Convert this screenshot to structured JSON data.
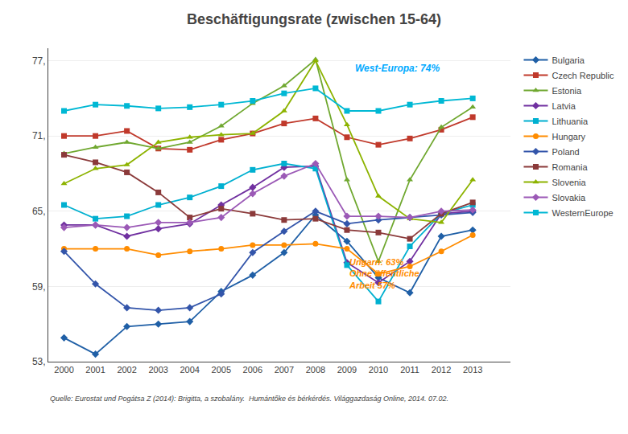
{
  "chart_data": {
    "type": "line",
    "title": "Beschäftigungsrate (zwischen 15-64)",
    "x": [
      2000,
      2001,
      2002,
      2003,
      2004,
      2005,
      2006,
      2007,
      2008,
      2009,
      2010,
      2011,
      2012,
      2013
    ],
    "xlim": [
      1999.5,
      2014.2
    ],
    "xticks": [
      2000,
      2001,
      2002,
      2003,
      2004,
      2005,
      2006,
      2007,
      2008,
      2009,
      2010,
      2011,
      2012,
      2013
    ],
    "ylim": [
      53,
      78
    ],
    "yticks": [
      {
        "value": 53,
        "label": "53,"
      },
      {
        "value": 59,
        "label": "59,"
      },
      {
        "value": 65,
        "label": "65,"
      },
      {
        "value": 71,
        "label": "71,"
      },
      {
        "value": 77,
        "label": "77,"
      }
    ],
    "grid": true,
    "legend": "right",
    "series": [
      {
        "name": "Bulgaria",
        "color": "#1f5fa6",
        "marker": "diamond",
        "values": [
          54.9,
          53.6,
          55.8,
          56.0,
          56.2,
          58.6,
          59.9,
          61.7,
          64.7,
          62.6,
          59.7,
          58.5,
          63.0,
          63.5
        ]
      },
      {
        "name": "Czech Republic",
        "color": "#c0392b",
        "marker": "square",
        "values": [
          71.0,
          71.0,
          71.4,
          70.0,
          69.9,
          70.7,
          71.2,
          72.0,
          72.4,
          70.9,
          70.3,
          70.8,
          71.5,
          72.5
        ]
      },
      {
        "name": "Estonia",
        "color": "#70a830",
        "marker": "triangle-up",
        "values": [
          69.6,
          70.1,
          70.5,
          70.0,
          70.5,
          71.8,
          73.6,
          75.0,
          77.1,
          67.5,
          61.0,
          67.5,
          71.7,
          73.3
        ]
      },
      {
        "name": "Latvia",
        "color": "#7030a0",
        "marker": "diamond",
        "values": [
          63.9,
          63.9,
          63.0,
          63.6,
          64.0,
          65.5,
          66.9,
          68.5,
          68.6,
          60.9,
          59.3,
          61.0,
          64.8,
          65.0
        ]
      },
      {
        "name": "Lithuania",
        "color": "#00b0d0",
        "marker": "square",
        "values": [
          65.5,
          64.4,
          64.6,
          65.5,
          66.1,
          67.0,
          68.3,
          68.8,
          68.4,
          60.7,
          57.8,
          62.2,
          64.8,
          65.5
        ]
      },
      {
        "name": "Hungary",
        "color": "#ff8c00",
        "marker": "circle",
        "values": [
          62.0,
          62.0,
          62.0,
          61.5,
          61.8,
          62.0,
          62.3,
          62.3,
          62.4,
          62.0,
          60.0,
          60.6,
          61.8,
          63.1
        ]
      },
      {
        "name": "Poland",
        "color": "#3355aa",
        "marker": "diamond",
        "values": [
          61.8,
          59.2,
          57.3,
          57.1,
          57.3,
          58.4,
          61.7,
          63.4,
          65.0,
          64.0,
          64.3,
          64.5,
          64.7,
          64.9
        ]
      },
      {
        "name": "Romania",
        "color": "#8b3a3a",
        "marker": "square",
        "values": [
          69.5,
          68.9,
          68.1,
          66.5,
          64.5,
          65.2,
          64.8,
          64.3,
          64.4,
          63.5,
          63.3,
          62.8,
          64.8,
          65.7
        ]
      },
      {
        "name": "Slovenia",
        "color": "#8db300",
        "marker": "triangle-up",
        "values": [
          67.2,
          68.4,
          68.7,
          70.5,
          70.9,
          71.1,
          71.2,
          73.0,
          77.0,
          71.9,
          66.2,
          64.4,
          64.1,
          67.5
        ]
      },
      {
        "name": "Slovakia",
        "color": "#9b59b6",
        "marker": "diamond",
        "values": [
          63.7,
          63.9,
          63.7,
          64.1,
          64.1,
          64.5,
          66.4,
          67.8,
          68.8,
          64.6,
          64.6,
          64.5,
          65.0,
          65.1
        ]
      },
      {
        "name": "WesternEurope",
        "color": "#00b8d4",
        "marker": "square",
        "values": [
          73.0,
          73.5,
          73.4,
          73.2,
          73.3,
          73.5,
          73.8,
          74.4,
          74.8,
          73.0,
          73.0,
          73.5,
          73.8,
          74.0
        ]
      }
    ],
    "annotations": [
      {
        "text": "West-Europa: 74%",
        "color": "#00aaff"
      },
      {
        "text": "Ungarn: 63%\nOhne öffentliche\nArbeit 57%",
        "color": "#ff8c00"
      },
      {
        "text": "Quelle: Eurostat und Pogátsa Z (2014): Brigitta, a szobalány.  Humántőke és bérkérdés. Világgazdaság Online, 2014. 07.02."
      }
    ]
  }
}
